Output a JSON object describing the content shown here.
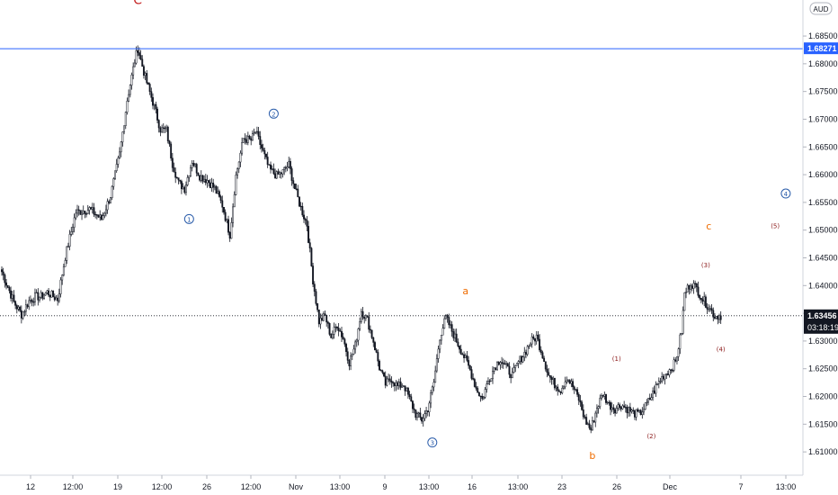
{
  "currency_badge": "AUD",
  "chart_data": {
    "type": "candlestick",
    "ylim": [
      1.6058,
      1.6915
    ],
    "y_ticks": [
      "1.68500",
      "1.68000",
      "1.67500",
      "1.67000",
      "1.66500",
      "1.66000",
      "1.65500",
      "1.65000",
      "1.64500",
      "1.64000",
      "1.63500",
      "1.63000",
      "1.62500",
      "1.62000",
      "1.61500",
      "1.61000"
    ],
    "x_ticks": [
      "12",
      "12:00",
      "19",
      "12:00",
      "26",
      "12:00",
      "Nov",
      "13:00",
      "9",
      "13:00",
      "16",
      "13:00",
      "23",
      "26",
      "Dec",
      "7",
      "13:00"
    ],
    "resistance_level": {
      "value": 1.68271,
      "label": "1.68271",
      "color": "#2962ff"
    },
    "last_price": {
      "value": 1.63456,
      "label": "1.63456",
      "countdown": "03:18:19"
    },
    "colors": {
      "candle": "#131722",
      "label_red": "#c62828",
      "label_orange": "#ef6c00",
      "label_dark_red": "#8b1a1a",
      "label_blue": "#2a5caa"
    },
    "anchor_prices": [
      [
        0,
        1.6425
      ],
      [
        8,
        1.637
      ],
      [
        13,
        1.6348
      ],
      [
        18,
        1.6372
      ],
      [
        22,
        1.638
      ],
      [
        26,
        1.638
      ],
      [
        30,
        1.6388
      ],
      [
        37,
        1.6375
      ],
      [
        42,
        1.6452
      ],
      [
        49,
        1.6532
      ],
      [
        58,
        1.6538
      ],
      [
        66,
        1.652
      ],
      [
        72,
        1.6562
      ],
      [
        78,
        1.6637
      ],
      [
        83,
        1.6735
      ],
      [
        88,
        1.6805
      ],
      [
        90,
        1.6828
      ],
      [
        95,
        1.6775
      ],
      [
        101,
        1.6722
      ],
      [
        105,
        1.6682
      ],
      [
        109,
        1.668
      ],
      [
        113,
        1.662
      ],
      [
        117,
        1.6585
      ],
      [
        121,
        1.6575
      ],
      [
        126,
        1.6625
      ],
      [
        131,
        1.6598
      ],
      [
        136,
        1.659
      ],
      [
        141,
        1.6575
      ],
      [
        146,
        1.6545
      ],
      [
        151,
        1.6492
      ],
      [
        155,
        1.6598
      ],
      [
        160,
        1.6665
      ],
      [
        165,
        1.6662
      ],
      [
        168,
        1.6678
      ],
      [
        172,
        1.6648
      ],
      [
        177,
        1.661
      ],
      [
        182,
        1.6598
      ],
      [
        186,
        1.6605
      ],
      [
        190,
        1.6618
      ],
      [
        194,
        1.6575
      ],
      [
        198,
        1.654
      ],
      [
        202,
        1.651
      ],
      [
        206,
        1.641
      ],
      [
        210,
        1.6335
      ],
      [
        214,
        1.6345
      ],
      [
        218,
        1.6308
      ],
      [
        222,
        1.633
      ],
      [
        226,
        1.6305
      ],
      [
        230,
        1.6262
      ],
      [
        234,
        1.6292
      ],
      [
        238,
        1.6355
      ],
      [
        242,
        1.6338
      ],
      [
        246,
        1.63
      ],
      [
        250,
        1.6252
      ],
      [
        254,
        1.6222
      ],
      [
        258,
        1.6232
      ],
      [
        262,
        1.6218
      ],
      [
        266,
        1.6222
      ],
      [
        270,
        1.6195
      ],
      [
        274,
        1.6168
      ],
      [
        278,
        1.6158
      ],
      [
        282,
        1.6178
      ],
      [
        286,
        1.6225
      ],
      [
        290,
        1.6308
      ],
      [
        294,
        1.6342
      ],
      [
        298,
        1.6318
      ],
      [
        302,
        1.6295
      ],
      [
        306,
        1.6272
      ],
      [
        310,
        1.6248
      ],
      [
        314,
        1.6215
      ],
      [
        318,
        1.6195
      ],
      [
        322,
        1.6228
      ],
      [
        326,
        1.6252
      ],
      [
        330,
        1.6268
      ],
      [
        334,
        1.6252
      ],
      [
        338,
        1.6238
      ],
      [
        342,
        1.6262
      ],
      [
        346,
        1.6278
      ],
      [
        350,
        1.6298
      ],
      [
        354,
        1.6308
      ],
      [
        358,
        1.6275
      ],
      [
        362,
        1.6238
      ],
      [
        366,
        1.6222
      ],
      [
        370,
        1.6212
      ],
      [
        374,
        1.6235
      ],
      [
        378,
        1.6218
      ],
      [
        382,
        1.6195
      ],
      [
        386,
        1.6158
      ],
      [
        390,
        1.614
      ],
      [
        394,
        1.618
      ],
      [
        398,
        1.6205
      ],
      [
        402,
        1.6185
      ],
      [
        406,
        1.6178
      ],
      [
        410,
        1.6185
      ],
      [
        414,
        1.6178
      ],
      [
        418,
        1.617
      ],
      [
        422,
        1.6168
      ],
      [
        426,
        1.6182
      ],
      [
        430,
        1.62
      ],
      [
        434,
        1.6222
      ],
      [
        438,
        1.6238
      ],
      [
        442,
        1.6248
      ],
      [
        446,
        1.6262
      ],
      [
        450,
        1.6318
      ],
      [
        452,
        1.6385
      ],
      [
        456,
        1.6405
      ],
      [
        460,
        1.6395
      ],
      [
        464,
        1.6375
      ],
      [
        468,
        1.6362
      ],
      [
        472,
        1.6345
      ],
      [
        476,
        1.6346
      ]
    ],
    "wave_labels": [
      {
        "text": "C",
        "price": 1.6915,
        "bar": 90,
        "color": "label_red",
        "style": "large"
      },
      {
        "text": "1",
        "price": 1.652,
        "bar": 124,
        "color": "label_blue",
        "style": "circle"
      },
      {
        "text": "2",
        "price": 1.671,
        "bar": 180,
        "color": "label_blue",
        "style": "circle"
      },
      {
        "text": "3",
        "price": 1.6117,
        "bar": 285,
        "color": "label_blue",
        "style": "circle"
      },
      {
        "text": "a",
        "price": 1.639,
        "bar": 307,
        "color": "label_orange",
        "style": "medium"
      },
      {
        "text": "b",
        "price": 1.6093,
        "bar": 391,
        "color": "label_orange",
        "style": "medium"
      },
      {
        "text": "(1)",
        "price": 1.6268,
        "bar": 407,
        "color": "label_dark_red",
        "style": "small"
      },
      {
        "text": "(2)",
        "price": 1.6128,
        "bar": 430,
        "color": "label_dark_red",
        "style": "small"
      },
      {
        "text": "(3)",
        "price": 1.6437,
        "bar": 466,
        "color": "label_dark_red",
        "style": "small"
      },
      {
        "text": "(4)",
        "price": 1.6285,
        "bar": 476,
        "color": "label_dark_red",
        "style": "small"
      },
      {
        "text": "c",
        "price": 1.6507,
        "bar": 468,
        "color": "label_orange",
        "style": "medium"
      },
      {
        "text": "(5)",
        "price": 1.6507,
        "bar": 512,
        "color": "label_dark_red",
        "style": "small"
      },
      {
        "text": "4",
        "price": 1.6566,
        "bar": 519,
        "color": "label_blue",
        "style": "circle"
      }
    ]
  }
}
